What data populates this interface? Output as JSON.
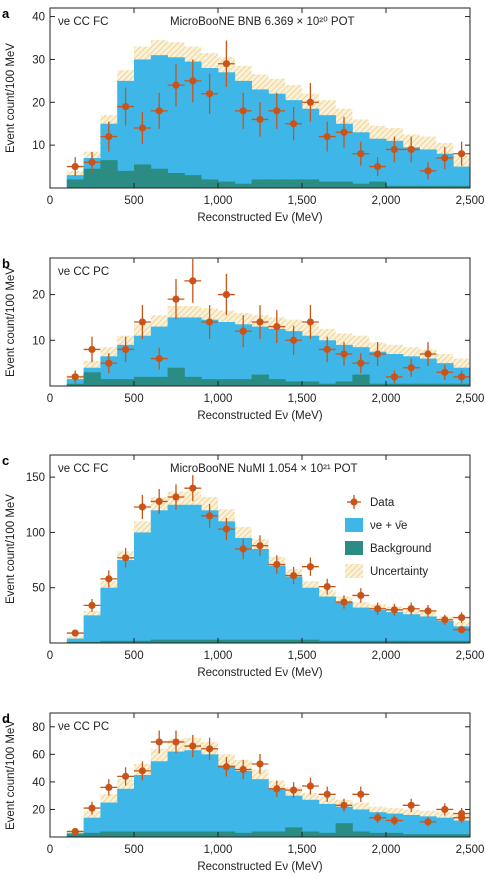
{
  "colors": {
    "signal": "#3eb7e8",
    "background": "#2a8c82",
    "data": "#c9541a",
    "uncertainty": "#f1ddaa",
    "axis": "#222222"
  },
  "chart_data": [
    {
      "type": "bar",
      "panel_letter": "a",
      "annotation_channel": "νe CC FC",
      "annotation_experiment": "MicroBooNE BNB 6.369 × 10²⁰ POT",
      "xlabel": "Reconstructed Eν (MeV)",
      "ylabel": "Event count/100 MeV",
      "xlim": [
        0,
        2500
      ],
      "ylim": [
        0,
        42
      ],
      "xticks": [
        0,
        500,
        1000,
        1500,
        2000,
        2500
      ],
      "xtick_labels": [
        "0",
        "500",
        "1,000",
        "1,500",
        "2,000",
        "2,500"
      ],
      "yticks": [
        10,
        20,
        30,
        40
      ],
      "ytick_labels": [
        "10",
        "20",
        "30",
        "40"
      ],
      "bin_edges": [
        100,
        200,
        300,
        400,
        500,
        600,
        700,
        800,
        900,
        1000,
        1100,
        1200,
        1300,
        1400,
        1500,
        1600,
        1700,
        1800,
        1900,
        2000,
        2100,
        2200,
        2300,
        2400,
        2500
      ],
      "total_prediction": [
        3,
        7,
        15,
        25,
        30,
        31,
        30.5,
        29.5,
        28,
        27,
        25,
        23,
        22,
        20.5,
        18.5,
        17,
        15,
        13,
        11.5,
        11,
        9.5,
        9,
        8,
        5
      ],
      "background": [
        2,
        4.5,
        6.5,
        4,
        5.5,
        4.5,
        3.5,
        3,
        2,
        1.5,
        1,
        2,
        2,
        2,
        2,
        1.5,
        1.5,
        1,
        1.5,
        0.5,
        0.5,
        0.5,
        0.5,
        0.5
      ],
      "uncertainty": [
        1,
        1.5,
        2,
        2.5,
        3,
        3.5,
        3.5,
        3.5,
        3.5,
        3.5,
        3.5,
        3.5,
        3.5,
        3.5,
        3.5,
        3.5,
        3.5,
        3,
        3,
        3,
        3,
        3,
        2.5,
        2.5
      ],
      "data": [
        5,
        6,
        12,
        19,
        14,
        18,
        24,
        25,
        22,
        29,
        18,
        16,
        18,
        15,
        20,
        12,
        13,
        8,
        5,
        9,
        9,
        4,
        7,
        8
      ],
      "data_err": [
        2.2,
        2.4,
        3.5,
        4.4,
        3.7,
        4.2,
        4.9,
        5,
        4.7,
        5.4,
        4.2,
        4,
        4.2,
        3.9,
        4.5,
        3.5,
        3.6,
        2.8,
        2.2,
        3,
        3,
        2,
        2.6,
        2.8
      ]
    },
    {
      "type": "bar",
      "panel_letter": "b",
      "annotation_channel": "νe CC PC",
      "annotation_experiment": "",
      "xlabel": "Reconstructed Eν (MeV)",
      "ylabel": "Event count/100 MeV",
      "xlim": [
        0,
        2500
      ],
      "ylim": [
        0,
        28
      ],
      "xticks": [
        0,
        500,
        1000,
        1500,
        2000,
        2500
      ],
      "xtick_labels": [
        "0",
        "500",
        "1,000",
        "1,500",
        "2,000",
        "2,500"
      ],
      "yticks": [
        10,
        20
      ],
      "ytick_labels": [
        "10",
        "20"
      ],
      "bin_edges": [
        100,
        200,
        300,
        400,
        500,
        600,
        700,
        800,
        900,
        1000,
        1100,
        1200,
        1300,
        1400,
        1500,
        1600,
        1700,
        1800,
        1900,
        2000,
        2100,
        2200,
        2300,
        2400,
        2500
      ],
      "total_prediction": [
        1.5,
        4,
        6.5,
        9,
        11,
        13,
        15,
        15,
        14.5,
        14,
        13.5,
        13,
        12.5,
        12,
        11,
        10,
        9,
        8.5,
        7.5,
        7,
        6.5,
        6,
        5,
        4
      ],
      "background": [
        0.5,
        3,
        1.5,
        1.5,
        2,
        2,
        4,
        2,
        1.5,
        1.5,
        1.5,
        2.5,
        1.5,
        1,
        1,
        0.5,
        1,
        2.5,
        0.5,
        0.5,
        0.5,
        0.5,
        0.5,
        0.5
      ],
      "uncertainty": [
        1,
        1.5,
        2,
        2,
        2.5,
        2.5,
        2.5,
        2.5,
        2.5,
        2.5,
        2.5,
        2.5,
        2.5,
        2.5,
        2.5,
        2.5,
        2.5,
        2.5,
        2,
        2,
        2,
        2,
        2,
        2
      ],
      "data": [
        2,
        8,
        5,
        8,
        14,
        6,
        19,
        23,
        14,
        20,
        12,
        14,
        13,
        10,
        14,
        8,
        7,
        5,
        7,
        2,
        4,
        7,
        3,
        2
      ],
      "data_err": [
        1.4,
        2.8,
        2.2,
        2.8,
        3.7,
        2.4,
        4.4,
        4.8,
        3.7,
        4.5,
        3.5,
        3.7,
        3.6,
        3.2,
        3.7,
        2.8,
        2.6,
        2.2,
        2.6,
        1.4,
        2,
        2.6,
        1.7,
        1.4
      ]
    },
    {
      "type": "bar",
      "panel_letter": "c",
      "annotation_channel": "νe CC FC",
      "annotation_experiment": "MicroBooNE NuMI 1.054 × 10²¹ POT",
      "xlabel": "Reconstructed Eν (MeV)",
      "ylabel": "Event count/100 MeV",
      "xlim": [
        0,
        2500
      ],
      "ylim": [
        0,
        170
      ],
      "xticks": [
        0,
        500,
        1000,
        1500,
        2000,
        2500
      ],
      "xtick_labels": [
        "0",
        "500",
        "1,000",
        "1,500",
        "2,000",
        "2,500"
      ],
      "yticks": [
        50,
        100,
        150
      ],
      "ytick_labels": [
        "50",
        "100",
        "150"
      ],
      "bin_edges": [
        100,
        200,
        300,
        400,
        500,
        600,
        700,
        800,
        900,
        1000,
        1100,
        1200,
        1300,
        1400,
        1500,
        1600,
        1700,
        1800,
        1900,
        2000,
        2100,
        2200,
        2300,
        2400,
        2500
      ],
      "total_prediction": [
        4,
        25,
        50,
        75,
        100,
        120,
        125,
        125,
        120,
        110,
        95,
        85,
        70,
        60,
        50,
        42,
        37,
        32,
        30,
        28,
        26,
        24,
        20,
        15
      ],
      "background": [
        1,
        1,
        2,
        2,
        2,
        3,
        3,
        3,
        3,
        3,
        3,
        3,
        3,
        3,
        3,
        2,
        2,
        2,
        2,
        2,
        2,
        2,
        2,
        2
      ],
      "uncertainty": [
        2,
        4,
        6,
        8,
        10,
        12,
        12,
        12,
        12,
        11,
        10,
        9,
        8,
        7,
        6,
        6,
        5,
        5,
        5,
        5,
        4,
        4,
        4,
        4
      ],
      "data": [
        9,
        34,
        58,
        77,
        123,
        128,
        132,
        140,
        115,
        103,
        85,
        88,
        71,
        61,
        69,
        51,
        37,
        43,
        31,
        30,
        31,
        29,
        21,
        23,
        12
      ],
      "data_err": [
        3,
        5.8,
        7.6,
        8.8,
        11,
        11.3,
        11.5,
        11.8,
        10.7,
        10.1,
        9.2,
        9.4,
        8.4,
        7.8,
        8.3,
        7.1,
        6.1,
        6.6,
        5.6,
        5.5,
        5.6,
        5.4,
        4.6,
        4.8,
        3.5
      ],
      "data_x": [
        150,
        250,
        350,
        450,
        550,
        650,
        750,
        850,
        950,
        1050,
        1150,
        1250,
        1350,
        1450,
        1550,
        1650,
        1750,
        1850,
        1950,
        2050,
        2150,
        2250,
        2350,
        2450,
        2450
      ],
      "legend": {
        "placement": "right",
        "items": [
          {
            "key": "data",
            "label": "Data"
          },
          {
            "key": "signal",
            "label": "νe + ν̄e"
          },
          {
            "key": "background",
            "label": "Background"
          },
          {
            "key": "uncertainty",
            "label": "Uncertainty"
          }
        ]
      }
    },
    {
      "type": "bar",
      "panel_letter": "d",
      "annotation_channel": "νe CC PC",
      "annotation_experiment": "",
      "xlabel": "Reconstructed Eν (MeV)",
      "ylabel": "Event count/100 MeV",
      "xlim": [
        0,
        2500
      ],
      "ylim": [
        0,
        90
      ],
      "xticks": [
        0,
        500,
        1000,
        1500,
        2000,
        2500
      ],
      "xtick_labels": [
        "0",
        "500",
        "1,000",
        "1,500",
        "2,000",
        "2,500"
      ],
      "yticks": [
        20,
        40,
        60,
        80
      ],
      "ytick_labels": [
        "20",
        "40",
        "60",
        "80"
      ],
      "bin_edges": [
        100,
        200,
        300,
        400,
        500,
        600,
        700,
        800,
        900,
        1000,
        1100,
        1200,
        1300,
        1400,
        1500,
        1600,
        1700,
        1800,
        1900,
        2000,
        2100,
        2200,
        2300,
        2400,
        2500
      ],
      "total_prediction": [
        3,
        14,
        25,
        35,
        45,
        55,
        62,
        63,
        60,
        52,
        48,
        42,
        35,
        30,
        27,
        24,
        22,
        20,
        18,
        17,
        16,
        15,
        14,
        12
      ],
      "background": [
        2,
        3,
        4,
        4,
        4,
        4,
        4,
        4,
        4,
        4,
        3,
        4,
        4,
        7,
        4,
        3,
        10,
        4,
        3,
        3,
        2,
        2,
        2,
        2
      ],
      "uncertainty": [
        2,
        5,
        6,
        7,
        8,
        9,
        9,
        9,
        9,
        8,
        8,
        7,
        6,
        6,
        5,
        5,
        5,
        5,
        4,
        4,
        4,
        4,
        4,
        4
      ],
      "data": [
        4,
        21,
        36,
        44,
        48,
        69,
        69,
        66,
        64,
        51,
        49,
        53,
        35,
        34,
        37,
        31,
        23,
        31,
        14,
        12,
        23,
        11,
        20,
        17,
        14
      ],
      "data_err": [
        2,
        4.6,
        6,
        6.6,
        6.9,
        8.3,
        8.3,
        8.1,
        8,
        7.1,
        7,
        7.3,
        5.9,
        5.8,
        6.1,
        5.6,
        4.8,
        5.6,
        3.7,
        3.5,
        4.8,
        3.3,
        4.5,
        4.1,
        3.7
      ],
      "data_x": [
        150,
        250,
        350,
        450,
        550,
        650,
        750,
        850,
        950,
        1050,
        1150,
        1250,
        1350,
        1450,
        1550,
        1650,
        1750,
        1850,
        1950,
        2050,
        2150,
        2250,
        2350,
        2450,
        2450
      ]
    }
  ]
}
